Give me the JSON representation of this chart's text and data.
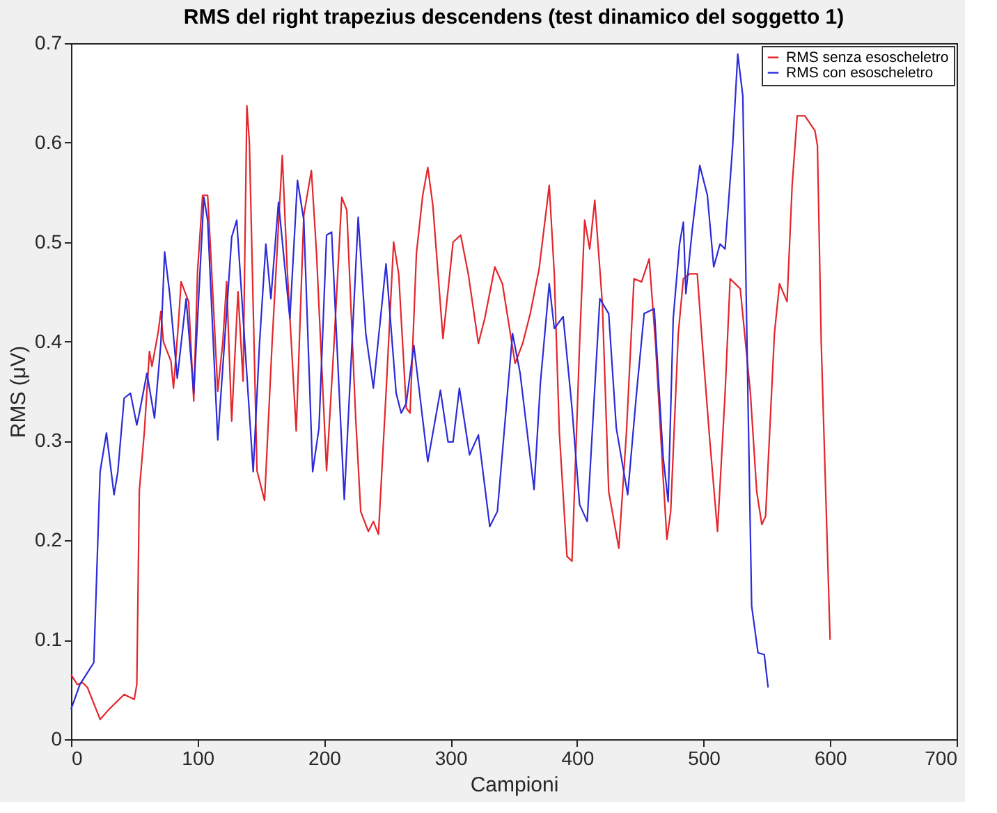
{
  "chart_data": {
    "type": "line",
    "title": "RMS del right trapezius descendens (test dinamico del soggetto 1)",
    "xlabel": "Campioni",
    "ylabel": "RMS (μV)",
    "xlim": [
      0,
      700
    ],
    "xticks": [
      0,
      100,
      200,
      300,
      400,
      500,
      600,
      700
    ],
    "ylim": [
      0,
      0.7
    ],
    "yticks": [
      0,
      0.1,
      0.2,
      0.3,
      0.4,
      0.5,
      0.6,
      0.7
    ],
    "grid": false,
    "legend": "top right",
    "marker": "none",
    "line_style": "solid",
    "series": [
      {
        "name": "RMS senza esoscheletro",
        "color": "#e3262b",
        "x": [
          0,
          5,
          9,
          13,
          23,
          30,
          42,
          50,
          52,
          54,
          58,
          62,
          64,
          69,
          71,
          73,
          79,
          81,
          85,
          87,
          93,
          97,
          100,
          104,
          108,
          110,
          116,
          120,
          123,
          127,
          132,
          136,
          139,
          141,
          147,
          153,
          159,
          167,
          171,
          178,
          184,
          190,
          194,
          202,
          208,
          214,
          218,
          225,
          229,
          235,
          239,
          243,
          249,
          255,
          259,
          265,
          268,
          273,
          278,
          282,
          286,
          294,
          302,
          308,
          314,
          322,
          327,
          335,
          341,
          351,
          357,
          363,
          370,
          378,
          382,
          386,
          392,
          396,
          402,
          406,
          410,
          414,
          420,
          425,
          433,
          439,
          445,
          451,
          457,
          462,
          468,
          471,
          474,
          480,
          484,
          489,
          495,
          499,
          505,
          511,
          517,
          521,
          529,
          537,
          542,
          546,
          549,
          556,
          560,
          566,
          570,
          574,
          580,
          588,
          590,
          593,
          600
        ],
        "values": [
          0.065,
          0.055,
          0.057,
          0.052,
          0.02,
          0.03,
          0.045,
          0.04,
          0.055,
          0.25,
          0.31,
          0.39,
          0.375,
          0.41,
          0.43,
          0.4,
          0.38,
          0.353,
          0.42,
          0.46,
          0.44,
          0.34,
          0.47,
          0.547,
          0.547,
          0.5,
          0.35,
          0.4,
          0.46,
          0.32,
          0.45,
          0.36,
          0.637,
          0.6,
          0.27,
          0.24,
          0.4,
          0.587,
          0.47,
          0.31,
          0.527,
          0.572,
          0.49,
          0.27,
          0.4,
          0.545,
          0.532,
          0.323,
          0.229,
          0.209,
          0.219,
          0.206,
          0.348,
          0.5,
          0.468,
          0.333,
          0.328,
          0.488,
          0.547,
          0.575,
          0.537,
          0.403,
          0.5,
          0.507,
          0.468,
          0.398,
          0.423,
          0.475,
          0.458,
          0.378,
          0.398,
          0.428,
          0.473,
          0.557,
          0.468,
          0.308,
          0.184,
          0.179,
          0.398,
          0.522,
          0.493,
          0.542,
          0.438,
          0.249,
          0.192,
          0.308,
          0.463,
          0.46,
          0.483,
          0.398,
          0.264,
          0.201,
          0.229,
          0.408,
          0.463,
          0.468,
          0.468,
          0.398,
          0.299,
          0.209,
          0.348,
          0.463,
          0.453,
          0.348,
          0.249,
          0.216,
          0.224,
          0.408,
          0.458,
          0.44,
          0.557,
          0.627,
          0.627,
          0.612,
          0.597,
          0.398,
          0.1
        ]
      },
      {
        "name": "RMS con esoscheletro",
        "color": "#2b2bd9",
        "x": [
          0,
          7,
          13,
          18,
          23,
          28,
          34,
          37,
          42,
          47,
          52,
          54,
          60,
          66,
          71,
          74,
          78,
          84,
          91,
          97,
          105,
          108,
          116,
          124,
          127,
          131,
          144,
          149,
          154,
          158,
          164,
          173,
          179,
          184,
          191,
          196,
          202,
          206,
          216,
          227,
          233,
          239,
          249,
          257,
          261,
          265,
          271,
          282,
          292,
          298,
          302,
          307,
          315,
          322,
          331,
          337,
          349,
          355,
          366,
          371,
          378,
          382,
          389,
          396,
          402,
          408,
          418,
          425,
          431,
          440,
          447,
          453,
          461,
          468,
          472,
          476,
          481,
          484,
          486,
          491,
          497,
          503,
          508,
          513,
          517,
          523,
          527,
          531,
          535,
          538,
          543,
          548,
          551
        ],
        "values": [
          0.03,
          0.055,
          0.067,
          0.077,
          0.269,
          0.308,
          0.246,
          0.269,
          0.343,
          0.348,
          0.316,
          0.328,
          0.368,
          0.323,
          0.398,
          0.49,
          0.448,
          0.363,
          0.443,
          0.348,
          0.545,
          0.522,
          0.301,
          0.448,
          0.505,
          0.522,
          0.269,
          0.398,
          0.498,
          0.443,
          0.54,
          0.423,
          0.562,
          0.522,
          0.269,
          0.313,
          0.507,
          0.51,
          0.241,
          0.525,
          0.408,
          0.353,
          0.478,
          0.348,
          0.328,
          0.338,
          0.396,
          0.279,
          0.351,
          0.299,
          0.299,
          0.353,
          0.286,
          0.306,
          0.214,
          0.229,
          0.408,
          0.368,
          0.251,
          0.358,
          0.458,
          0.413,
          0.425,
          0.333,
          0.236,
          0.219,
          0.443,
          0.428,
          0.313,
          0.246,
          0.348,
          0.428,
          0.433,
          0.284,
          0.239,
          0.423,
          0.498,
          0.52,
          0.448,
          0.512,
          0.577,
          0.547,
          0.475,
          0.498,
          0.493,
          0.597,
          0.689,
          0.647,
          0.348,
          0.134,
          0.087,
          0.085,
          0.052
        ]
      }
    ]
  }
}
